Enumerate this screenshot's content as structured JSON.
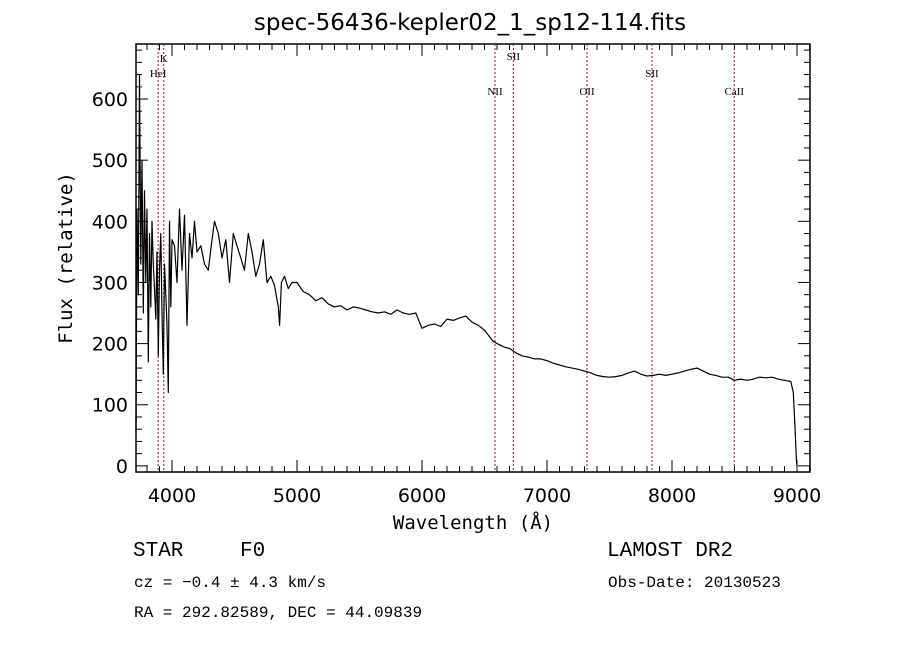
{
  "chart_data": {
    "type": "line",
    "title": "spec-56436-kepler02_1_sp12-114.fits",
    "xlabel": "Wavelength (Å)",
    "ylabel": "Flux (relative)",
    "xlim": [
      3712,
      9104
    ],
    "ylim": [
      -10,
      690
    ],
    "xticks": [
      4000,
      5000,
      6000,
      7000,
      8000,
      9000
    ],
    "yticks": [
      0,
      100,
      200,
      300,
      400,
      500,
      600
    ],
    "xtick_labels": [
      "4000",
      "5000",
      "6000",
      "7000",
      "8000",
      "9000"
    ],
    "ytick_labels": [
      "0",
      "100",
      "200",
      "300",
      "400",
      "500",
      "600"
    ],
    "grid": false,
    "line_color": "#000000",
    "marker_color": "#8b1a1a",
    "lines": [
      {
        "label": "K",
        "wavelength": 3934
      },
      {
        "label": "HeI",
        "wavelength": 3889
      },
      {
        "label": "NII",
        "wavelength": 6584
      },
      {
        "label": "SII",
        "wavelength": 6731
      },
      {
        "label": "OII",
        "wavelength": 7320
      },
      {
        "label": "SII",
        "wavelength": 7840
      },
      {
        "label": "CaII",
        "wavelength": 8498
      }
    ],
    "series": [
      {
        "name": "spectrum",
        "x": [
          3712,
          3720,
          3730,
          3740,
          3750,
          3760,
          3770,
          3780,
          3790,
          3800,
          3810,
          3820,
          3830,
          3840,
          3850,
          3860,
          3870,
          3880,
          3890,
          3900,
          3910,
          3920,
          3930,
          3940,
          3950,
          3960,
          3970,
          3980,
          3990,
          4000,
          4020,
          4040,
          4060,
          4080,
          4100,
          4120,
          4140,
          4160,
          4180,
          4200,
          4230,
          4260,
          4290,
          4320,
          4340,
          4370,
          4400,
          4430,
          4460,
          4490,
          4520,
          4550,
          4580,
          4610,
          4640,
          4670,
          4700,
          4730,
          4760,
          4790,
          4820,
          4850,
          4861,
          4875,
          4900,
          4930,
          4960,
          5000,
          5050,
          5100,
          5150,
          5200,
          5250,
          5300,
          5350,
          5400,
          5450,
          5500,
          5550,
          5600,
          5650,
          5700,
          5750,
          5800,
          5850,
          5900,
          5950,
          6000,
          6050,
          6100,
          6150,
          6200,
          6250,
          6300,
          6350,
          6400,
          6450,
          6500,
          6563,
          6600,
          6650,
          6700,
          6750,
          6800,
          6850,
          6900,
          6950,
          7000,
          7050,
          7100,
          7150,
          7200,
          7250,
          7300,
          7350,
          7400,
          7450,
          7500,
          7550,
          7600,
          7650,
          7700,
          7750,
          7800,
          7850,
          7900,
          7950,
          8000,
          8050,
          8100,
          8150,
          8200,
          8250,
          8300,
          8350,
          8400,
          8450,
          8500,
          8550,
          8600,
          8650,
          8700,
          8750,
          8800,
          8850,
          8900,
          8950,
          8970,
          8985,
          8995,
          9000
        ],
        "y": [
          60,
          420,
          280,
          640,
          330,
          500,
          250,
          450,
          300,
          420,
          170,
          380,
          260,
          400,
          330,
          290,
          240,
          350,
          180,
          320,
          380,
          250,
          150,
          330,
          280,
          230,
          120,
          400,
          260,
          370,
          360,
          300,
          420,
          320,
          410,
          230,
          380,
          340,
          400,
          350,
          360,
          330,
          320,
          370,
          400,
          380,
          340,
          370,
          300,
          380,
          360,
          340,
          320,
          380,
          350,
          310,
          330,
          370,
          300,
          310,
          295,
          260,
          230,
          300,
          310,
          290,
          300,
          300,
          285,
          280,
          270,
          275,
          265,
          260,
          262,
          255,
          260,
          258,
          255,
          252,
          250,
          252,
          248,
          255,
          250,
          248,
          250,
          225,
          230,
          232,
          228,
          240,
          238,
          242,
          245,
          235,
          230,
          222,
          205,
          200,
          195,
          192,
          185,
          180,
          178,
          175,
          175,
          172,
          168,
          165,
          162,
          160,
          158,
          155,
          152,
          148,
          146,
          145,
          146,
          148,
          152,
          155,
          150,
          147,
          148,
          150,
          148,
          150,
          152,
          155,
          158,
          160,
          155,
          150,
          148,
          145,
          145,
          140,
          142,
          140,
          142,
          145,
          144,
          145,
          142,
          140,
          138,
          120,
          60,
          10,
          0
        ]
      }
    ]
  },
  "footer": {
    "object_class": "STAR",
    "subclass": "F0",
    "survey": "LAMOST DR2",
    "cz": "cz = −0.4 ± 4.3 km/s",
    "obs_date": "Obs-Date: 20130523",
    "coords": "RA = 292.82589, DEC =  44.09839"
  }
}
